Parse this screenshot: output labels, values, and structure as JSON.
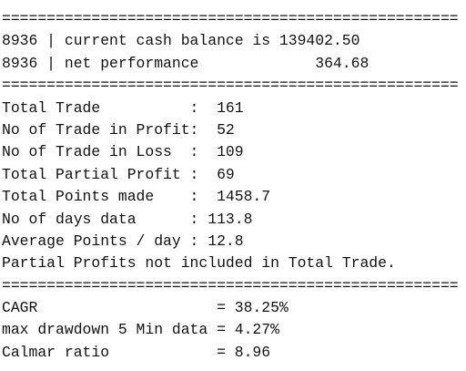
{
  "console": {
    "lines": [
      "===================================================",
      "8936 | current cash balance is 139402.50",
      "8936 | net performance             364.68",
      "===================================================",
      "Total Trade          :  161",
      "No of Trade in Profit:  52",
      "No of Trade in Loss  :  109",
      "Total Partial Profit :  69",
      "Total Points made    :  1458.7",
      "No of days data      : 113.8",
      "Average Points / day : 12.8",
      "Partial Profits not included in Total Trade.",
      "===================================================",
      "CAGR                    = 38.25%",
      "max drawdown 5 Min data = 4.27%",
      "Calmar ratio            = 8.96"
    ]
  }
}
